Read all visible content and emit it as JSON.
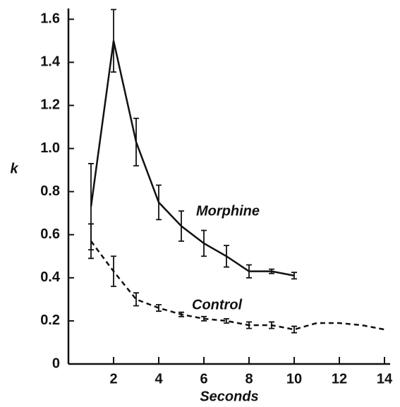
{
  "chart_data": {
    "type": "line",
    "x_label": "Seconds",
    "y_label": "k",
    "xlim": [
      0,
      14.25
    ],
    "xticks": [
      2,
      4,
      6,
      8,
      10,
      12,
      14
    ],
    "ylim": [
      0,
      1.65
    ],
    "yticks": [
      0,
      0.2,
      0.4,
      0.6,
      0.8,
      {
        "value": 1,
        "label": "1.0"
      },
      1.2,
      1.4,
      1.6
    ],
    "series": [
      {
        "name": "Morphine",
        "color": "#111111",
        "dash": false,
        "x": [
          1,
          2,
          3,
          4,
          5,
          6,
          7,
          8,
          9,
          10
        ],
        "values": [
          0.73,
          1.5,
          1.03,
          0.75,
          0.64,
          0.56,
          0.5,
          0.43,
          0.43,
          0.41
        ],
        "errors": [
          0.2,
          0.145,
          0.11,
          0.08,
          0.07,
          0.06,
          0.05,
          0.03,
          0.01,
          0.015
        ]
      },
      {
        "name": "Control",
        "color": "#111111",
        "dash": true,
        "x": [
          1,
          2,
          3,
          4,
          5,
          6,
          7,
          8,
          9,
          10,
          11,
          12,
          13,
          14
        ],
        "values": [
          0.57,
          0.43,
          0.3,
          0.26,
          0.23,
          0.21,
          0.2,
          0.18,
          0.18,
          0.16,
          0.19,
          0.19,
          0.18,
          0.16
        ],
        "errors": [
          0.08,
          0.07,
          0.03,
          0.015,
          0.01,
          0.01,
          0.01,
          0.015,
          0.015,
          0.015,
          null,
          null,
          null,
          null
        ]
      }
    ]
  }
}
